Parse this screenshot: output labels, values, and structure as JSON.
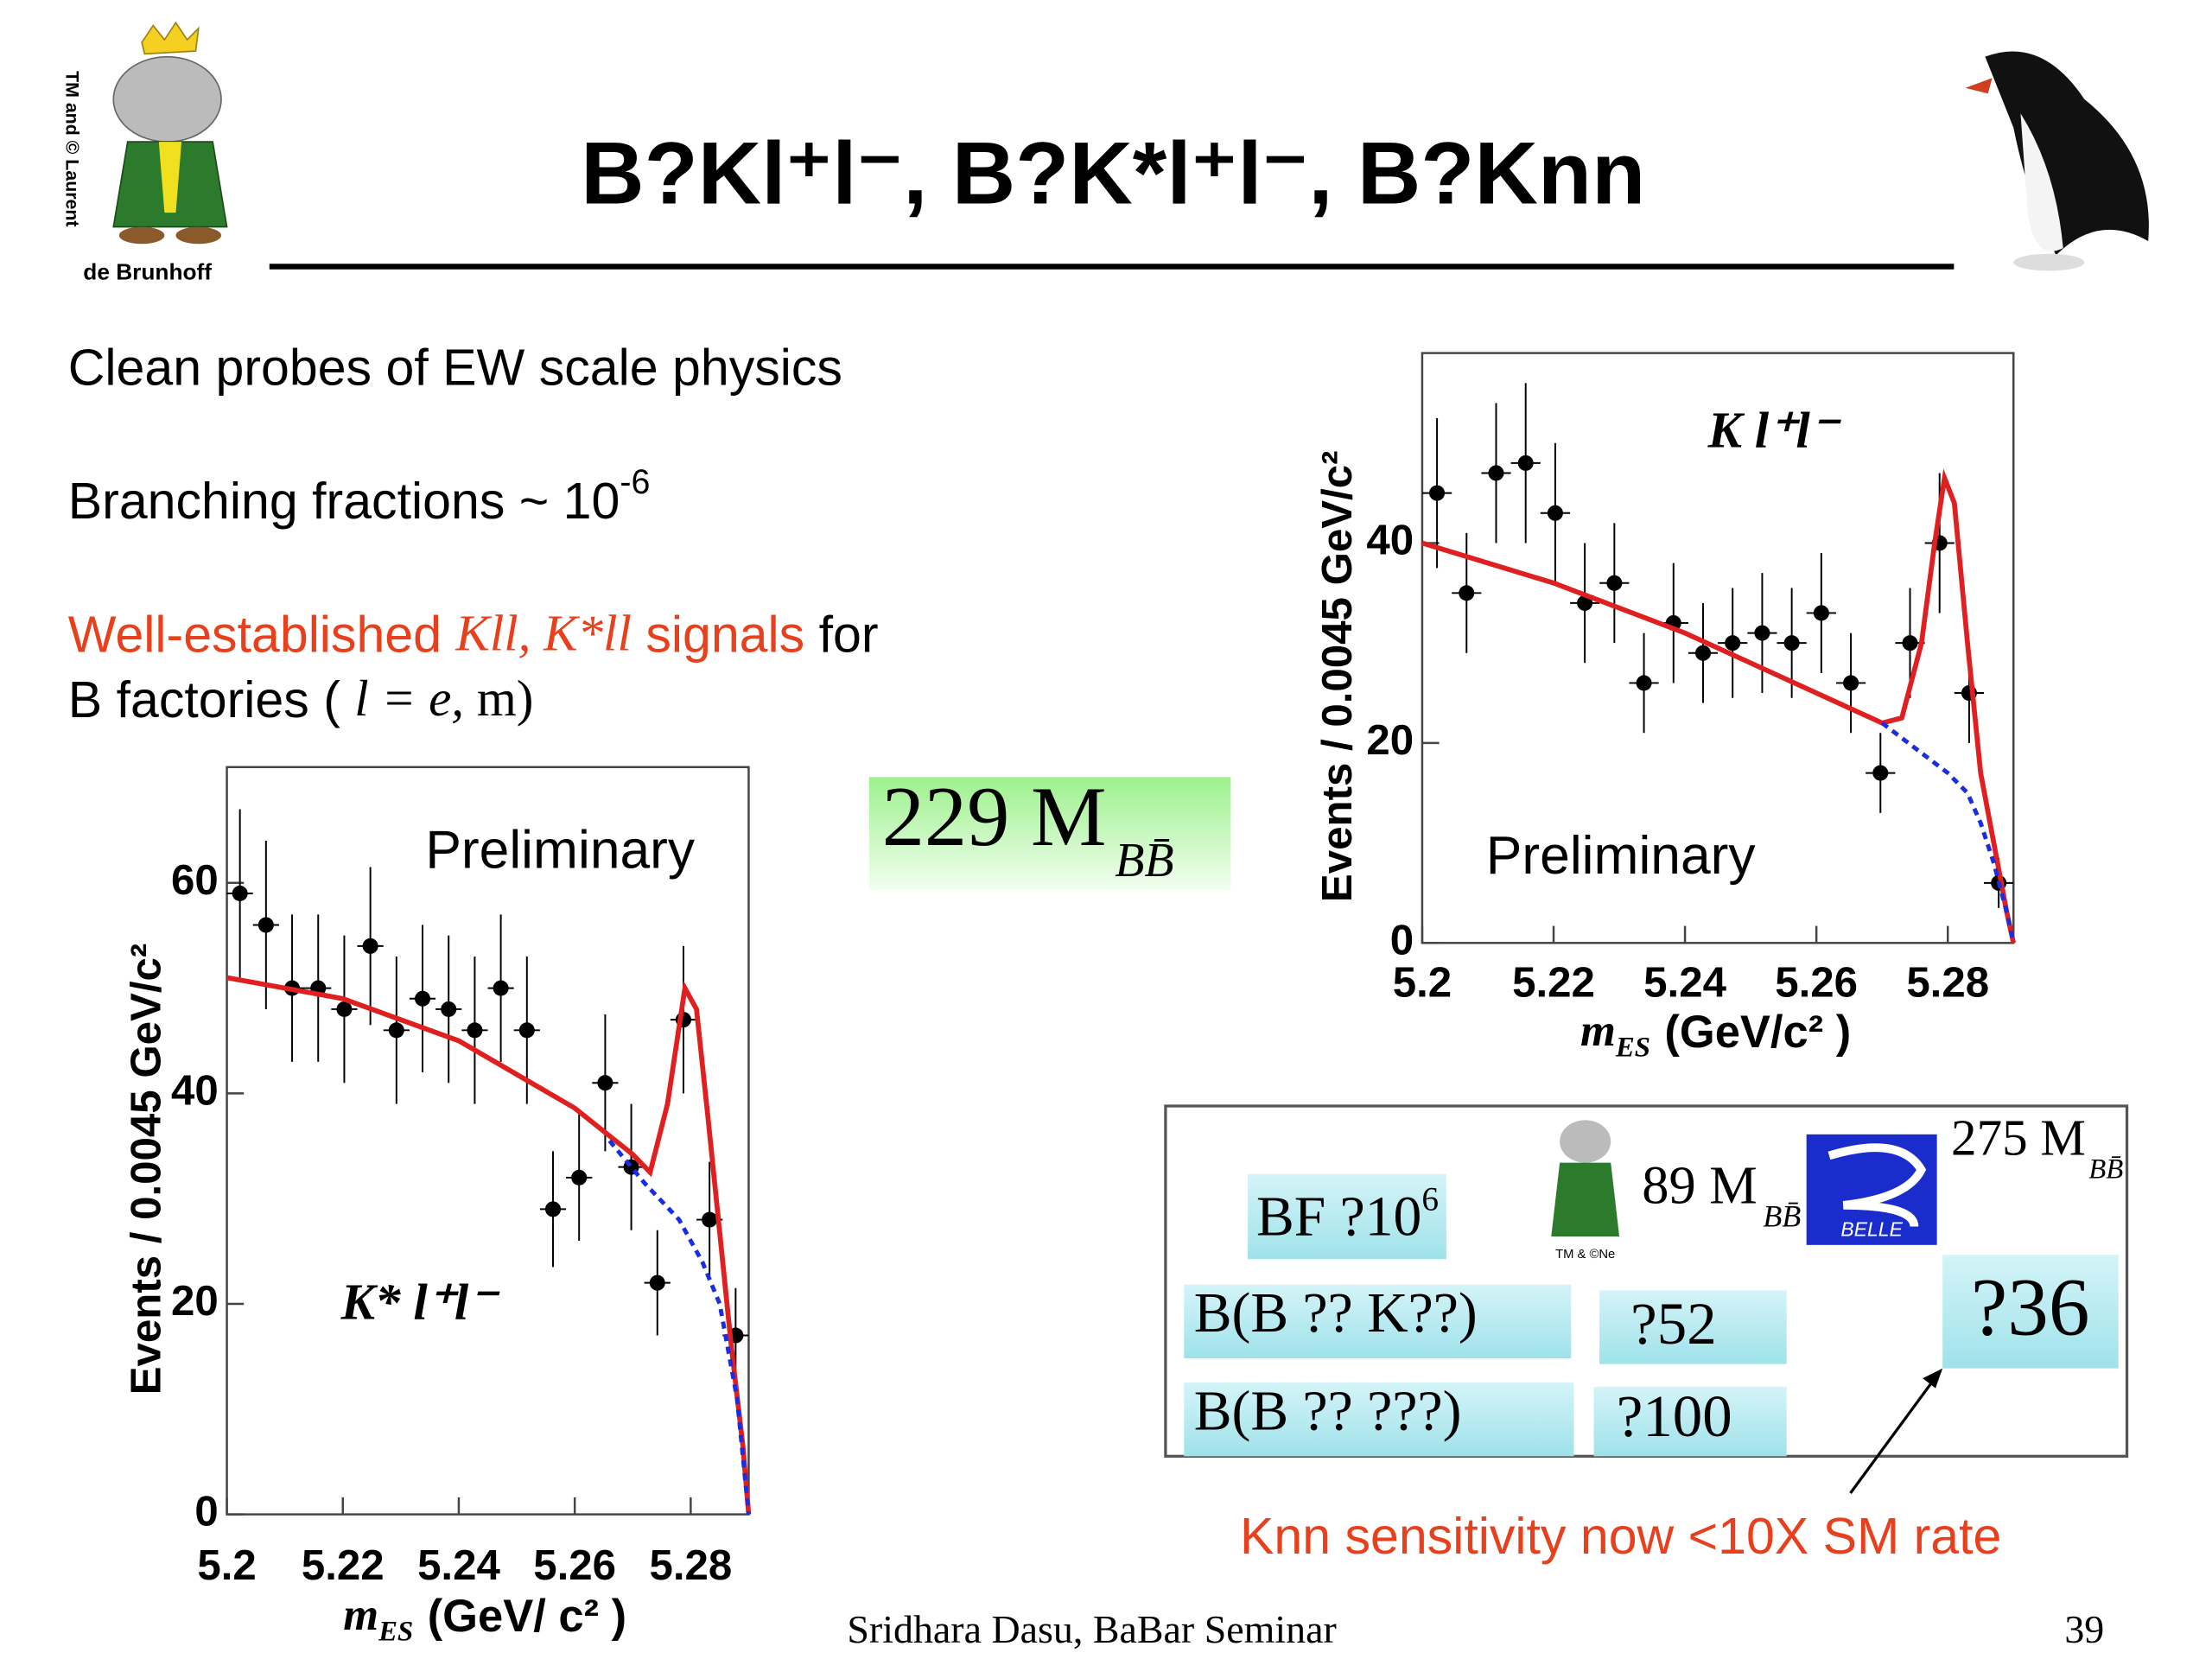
{
  "header": {
    "title": "B?Kl⁺l⁻, B?K*l⁺l⁻, B?Knn",
    "logo_side": "TM and © Laurent",
    "logo_bottom": "de Brunhoff"
  },
  "text": {
    "line1": "Clean probes of EW scale physics",
    "line2": {
      "text": "Branching fractions ~ 10",
      "sup": "-6"
    },
    "line3": {
      "red1": "Well-established ",
      "italic": "Kll, K*ll",
      "red2": " signals",
      "rest": " for"
    },
    "line4": {
      "text": "B factories ( ",
      "italic": "l = e,",
      "rest": " m)"
    }
  },
  "sample": {
    "text": "229 M",
    "sub": "BB̄"
  },
  "table": {
    "bf": {
      "text": "BF ?10",
      "sup": "6"
    },
    "babar": {
      "text": "89 M",
      "sub": "BB̄",
      "logo_note": "TM & ©Ne"
    },
    "belle": {
      "text": "275 M",
      "sub": "BB̄",
      "logo": "BELLE"
    },
    "rows": [
      [
        "B(B ?? K??)",
        "?52"
      ],
      [
        "B(B ?? ???)",
        "?100"
      ]
    ],
    "belle_limit": "?36"
  },
  "note": "Knn sensitivity now <10X SM rate",
  "footer": {
    "author": "Sridhara Dasu, BaBar Seminar",
    "page": "39"
  },
  "chart_data": [
    {
      "type": "scatter",
      "annotation": "K l⁺l⁻",
      "label": "Preliminary",
      "ylabel": "Events / 0.0045 GeV/c²",
      "xlabel": {
        "symbol": "m",
        "subscript": "ES",
        "unit": "(GeV/c² )"
      },
      "xlim": [
        5.2,
        5.29
      ],
      "ylim": [
        0,
        59
      ],
      "xticks": [
        5.2,
        5.22,
        5.24,
        5.26,
        5.28
      ],
      "yticks": [
        0,
        20,
        40
      ],
      "series": [
        {
          "style": "points",
          "color": "#000000",
          "xerror": 0.00225,
          "x": [
            5.20225,
            5.20675,
            5.21125,
            5.21575,
            5.22025,
            5.22475,
            5.22925,
            5.23375,
            5.23825,
            5.24275,
            5.24725,
            5.25175,
            5.25625,
            5.26075,
            5.26525,
            5.26975,
            5.27425,
            5.27875,
            5.28325,
            5.28775
          ],
          "values": [
            45,
            35,
            47,
            48,
            43,
            34,
            36,
            26,
            32,
            29,
            30,
            31,
            30,
            33,
            26,
            17,
            30,
            40,
            25,
            6
          ],
          "errors": [
            7.5,
            6,
            7,
            8,
            7,
            6,
            6,
            5,
            6,
            5,
            5.5,
            6,
            5.5,
            6,
            5,
            4,
            5.5,
            7,
            5,
            2.5
          ]
        },
        {
          "style": "line",
          "color": "#e02020",
          "x": [
            5.2,
            5.21,
            5.22,
            5.23,
            5.24,
            5.25,
            5.26,
            5.265,
            5.27,
            5.273,
            5.276,
            5.278,
            5.2795,
            5.281,
            5.283,
            5.285,
            5.287,
            5.289,
            5.29
          ],
          "values": [
            40,
            38,
            36,
            33.5,
            31,
            28,
            25,
            23.5,
            22,
            22.5,
            30,
            40,
            46.5,
            44,
            30,
            17,
            10,
            3,
            0
          ]
        },
        {
          "style": "dashed",
          "color": "#1a2ee0",
          "x": [
            5.27,
            5.275,
            5.28,
            5.283,
            5.285,
            5.287,
            5.289,
            5.29
          ],
          "values": [
            22,
            19.5,
            17,
            15,
            12,
            8,
            3,
            0
          ]
        }
      ]
    },
    {
      "type": "scatter",
      "annotation": "K* l⁺l⁻",
      "label": "Preliminary",
      "ylabel": "Events / 0.0045 GeV/c²",
      "xlabel": {
        "symbol": "m",
        "subscript": "ES",
        "unit": "(GeV/ c² )"
      },
      "xlim": [
        5.2,
        5.29
      ],
      "ylim": [
        0,
        71
      ],
      "xticks": [
        5.2,
        5.22,
        5.24,
        5.26,
        5.28
      ],
      "yticks": [
        0,
        20,
        40,
        60
      ],
      "series": [
        {
          "style": "points",
          "color": "#000000",
          "xerror": 0.00225,
          "x": [
            5.20225,
            5.20675,
            5.21125,
            5.21575,
            5.22025,
            5.22475,
            5.22925,
            5.23375,
            5.23825,
            5.24275,
            5.24725,
            5.25175,
            5.25625,
            5.26075,
            5.26525,
            5.26975,
            5.27425,
            5.27875,
            5.28325,
            5.28775
          ],
          "values": [
            59,
            56,
            50,
            50,
            48,
            54,
            46,
            49,
            48,
            46,
            50,
            46,
            29,
            32,
            41,
            33,
            22,
            47,
            28,
            17
          ],
          "errors": [
            8,
            8,
            7,
            7,
            7,
            7.5,
            7,
            7,
            7,
            7,
            7,
            7,
            5.5,
            6,
            6.5,
            6,
            5,
            7,
            5.5,
            4.5
          ]
        },
        {
          "style": "line",
          "color": "#e02020",
          "x": [
            5.2,
            5.22,
            5.24,
            5.26,
            5.27,
            5.273,
            5.276,
            5.279,
            5.281,
            5.283,
            5.285,
            5.287,
            5.289,
            5.29
          ],
          "values": [
            51,
            49,
            45,
            38.6,
            34.2,
            32.5,
            39,
            50,
            48,
            37.6,
            26.8,
            16,
            6.5,
            0
          ]
        },
        {
          "style": "dashed",
          "color": "#1a2ee0",
          "x": [
            5.266,
            5.272,
            5.278,
            5.282,
            5.285,
            5.288,
            5.29
          ],
          "values": [
            35.5,
            31.5,
            28,
            24,
            20,
            11,
            0
          ]
        }
      ]
    }
  ]
}
